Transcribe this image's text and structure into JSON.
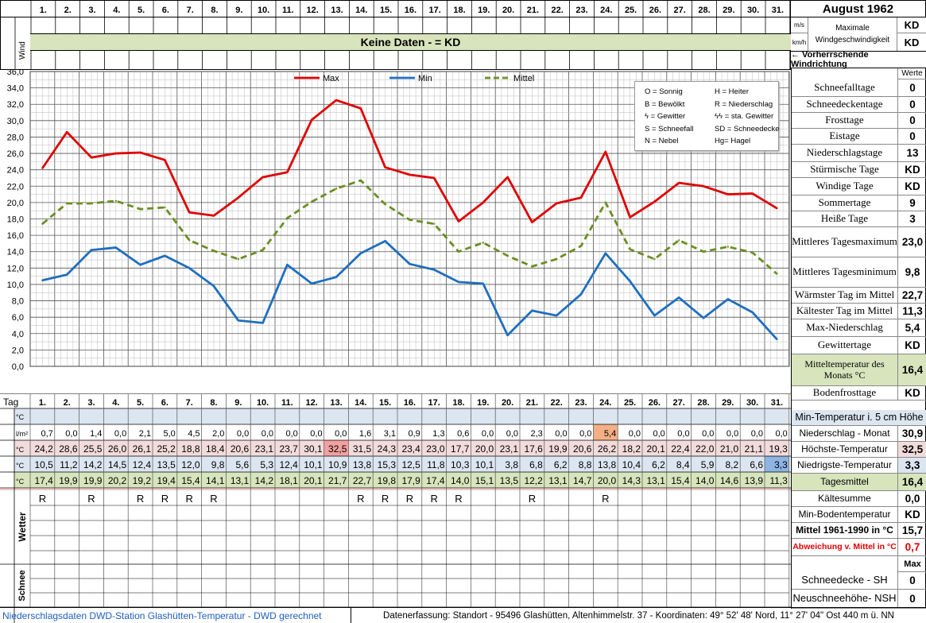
{
  "title": "August 1962",
  "days": [
    "1.",
    "2.",
    "3.",
    "4.",
    "5.",
    "6.",
    "7.",
    "8.",
    "9.",
    "10.",
    "11.",
    "12.",
    "13.",
    "14.",
    "15.",
    "16.",
    "17.",
    "18.",
    "19.",
    "20.",
    "21.",
    "22.",
    "23.",
    "24.",
    "25.",
    "26.",
    "27.",
    "28.",
    "29.",
    "30.",
    "31."
  ],
  "wind": {
    "section_label": "Wind",
    "banner": "Keine Daten -  = KD",
    "unit_ms": "m/s",
    "unit_kmh": "km/h",
    "max_label_1": "Maximale",
    "max_label_2": "Windgeschwindigkeit",
    "max_ms": "KD",
    "max_kmh": "KD",
    "prevailing": "← Vorherrschende Windrichtung"
  },
  "legend_box": {
    "items": [
      "O = Sonnig",
      "H = Heiter",
      "B = Bewölkt",
      "R = Niederschlag",
      "ϟ = Gewitter",
      "ϟϟ = sta. Gewitter",
      "S = Schneefall",
      "SD = Schneedecke",
      "N = Nebel",
      "Hg= Hagel"
    ]
  },
  "chart_data": {
    "type": "line",
    "x": [
      "1.",
      "2.",
      "3.",
      "4.",
      "5.",
      "6.",
      "7.",
      "8.",
      "9.",
      "10.",
      "11.",
      "12.",
      "13.",
      "14.",
      "15.",
      "16.",
      "17.",
      "18.",
      "19.",
      "20.",
      "21.",
      "22.",
      "23.",
      "24.",
      "25.",
      "26.",
      "27.",
      "28.",
      "29.",
      "30.",
      "31."
    ],
    "series": [
      {
        "name": "Max",
        "color": "#e00000",
        "style": "solid",
        "values": [
          24.2,
          28.6,
          25.5,
          26.0,
          26.1,
          25.2,
          18.8,
          18.4,
          20.6,
          23.1,
          23.7,
          30.1,
          32.5,
          31.5,
          24.3,
          23.4,
          23.0,
          17.7,
          20.0,
          23.1,
          17.6,
          19.9,
          20.6,
          26.2,
          18.2,
          20.1,
          22.4,
          22.0,
          21.0,
          21.1,
          19.3
        ]
      },
      {
        "name": "Min",
        "color": "#1f6fbf",
        "style": "solid",
        "values": [
          10.5,
          11.2,
          14.2,
          14.5,
          12.4,
          13.5,
          12.0,
          9.8,
          5.6,
          5.3,
          12.4,
          10.1,
          10.9,
          13.8,
          15.3,
          12.5,
          11.8,
          10.3,
          10.1,
          3.8,
          6.8,
          6.2,
          8.8,
          13.8,
          10.4,
          6.2,
          8.4,
          5.9,
          8.2,
          6.6,
          3.3
        ]
      },
      {
        "name": "Mittel",
        "color": "#6b8e23",
        "style": "dashed",
        "values": [
          17.4,
          19.9,
          19.9,
          20.2,
          19.2,
          19.4,
          15.4,
          14.1,
          13.1,
          14.2,
          18.1,
          20.1,
          21.7,
          22.7,
          19.8,
          17.9,
          17.4,
          14.0,
          15.1,
          13.5,
          12.2,
          13.1,
          14.7,
          20.0,
          14.3,
          13.1,
          15.4,
          14.0,
          14.6,
          13.9,
          11.3
        ]
      }
    ],
    "yticks": [
      "0,0",
      "2,0",
      "4,0",
      "6,0",
      "8,0",
      "10,0",
      "12,0",
      "14,0",
      "16,0",
      "18,0",
      "20,0",
      "22,0",
      "24,0",
      "26,0",
      "28,0",
      "30,0",
      "32,0",
      "34,0",
      "36,0"
    ],
    "ylim": [
      0,
      36
    ],
    "grid": true,
    "legend_position": "top"
  },
  "table": {
    "tag_label": "Tag",
    "units": [
      "°C",
      "l/m²",
      "°C",
      "°C",
      "°C"
    ],
    "niederschlag": [
      "0,7",
      "0,0",
      "1,4",
      "0,0",
      "2,1",
      "5,0",
      "4,5",
      "2,0",
      "0,0",
      "0,0",
      "0,0",
      "0,0",
      "0,0",
      "1,6",
      "3,1",
      "0,9",
      "1,3",
      "0,6",
      "0,0",
      "0,0",
      "2,3",
      "0,0",
      "0,0",
      "5,4",
      "0,0",
      "0,0",
      "0,0",
      "0,0",
      "0,0",
      "0,0",
      "0,0"
    ],
    "max": [
      "24,2",
      "28,6",
      "25,5",
      "26,0",
      "26,1",
      "25,2",
      "18,8",
      "18,4",
      "20,6",
      "23,1",
      "23,7",
      "30,1",
      "32,5",
      "31,5",
      "24,3",
      "23,4",
      "23,0",
      "17,7",
      "20,0",
      "23,1",
      "17,6",
      "19,9",
      "20,6",
      "26,2",
      "18,2",
      "20,1",
      "22,4",
      "22,0",
      "21,0",
      "21,1",
      "19,3"
    ],
    "min": [
      "10,5",
      "11,2",
      "14,2",
      "14,5",
      "12,4",
      "13,5",
      "12,0",
      "9,8",
      "5,6",
      "5,3",
      "12,4",
      "10,1",
      "10,9",
      "13,8",
      "15,3",
      "12,5",
      "11,8",
      "10,3",
      "10,1",
      "3,8",
      "6,8",
      "6,2",
      "8,8",
      "13,8",
      "10,4",
      "6,2",
      "8,4",
      "5,9",
      "8,2",
      "6,6",
      "3,3"
    ],
    "mittel": [
      "17,4",
      "19,9",
      "19,9",
      "20,2",
      "19,2",
      "19,4",
      "15,4",
      "14,1",
      "13,1",
      "14,2",
      "18,1",
      "20,1",
      "21,7",
      "22,7",
      "19,8",
      "17,9",
      "17,4",
      "14,0",
      "15,1",
      "13,5",
      "12,2",
      "13,1",
      "14,7",
      "20,0",
      "14,3",
      "13,1",
      "15,4",
      "14,0",
      "14,6",
      "13,9",
      "11,3"
    ],
    "wetter": [
      "R",
      "",
      "R",
      "",
      "R",
      "R",
      "R",
      "R",
      "",
      "",
      "",
      "",
      "",
      "R",
      "R",
      "R",
      "R",
      "R",
      "",
      "",
      "R",
      "",
      "",
      "R",
      "",
      "",
      "",
      "",
      "",
      "",
      ""
    ],
    "wetter_label": "Wetter",
    "schnee_label": "Schnee"
  },
  "right_panel": {
    "werte_header": "Werte",
    "stats": [
      {
        "label": "Schneefalltage",
        "value": "0"
      },
      {
        "label": "Schneedeckentage",
        "value": "0"
      },
      {
        "label": "Frosttage",
        "value": "0"
      },
      {
        "label": "Eistage",
        "value": "0"
      },
      {
        "label": "Niederschlagstage",
        "value": "13"
      },
      {
        "label": "Stürmische Tage",
        "value": "KD"
      },
      {
        "label": "Windige Tage",
        "value": "KD"
      },
      {
        "label": "Sommertage",
        "value": "9"
      },
      {
        "label": "Heiße Tage",
        "value": "3"
      },
      {
        "label": "Mittleres Tagesmaximum",
        "value": "23,0"
      },
      {
        "label": "Mittleres Tagesminimum",
        "value": "9,8"
      },
      {
        "label": "Wärmster Tag im Mittel",
        "value": "22,7"
      },
      {
        "label": "Kältester Tag im Mittel",
        "value": "11,3"
      },
      {
        "label": "Max-Niederschlag",
        "value": "5,4"
      },
      {
        "label": "Gewittertage",
        "value": "KD"
      },
      {
        "label": "Mitteltemperatur des Monats °C",
        "value": "16,4"
      },
      {
        "label": "Bodenfrosttage",
        "value": "KD"
      }
    ],
    "min_temp_5cm": "Min-Temperatur i. 5 cm Höhe",
    "niederschlag_monat": {
      "label": "Niederschlag - Monat",
      "value": "30,9"
    },
    "hoechste": {
      "label": "Höchste-Temperatur",
      "value": "32,5"
    },
    "niedrigste": {
      "label": "Niedrigste-Temperatur",
      "value": "3,3"
    },
    "tagesmittel": {
      "label": "Tagesmittel",
      "value": "16,4"
    },
    "kaeltesumme": {
      "label": "Kältesumme",
      "value": "0,0"
    },
    "min_boden": {
      "label": "Min-Bodentemperatur",
      "value": "KD"
    },
    "mittel_1961": {
      "label": "Mittel 1961-1990 in °C",
      "value": "15,7"
    },
    "abweichung": {
      "label": "Abweichung v. Mittel in °C",
      "value": "0,7"
    },
    "max_header": "Max",
    "schneedecke": {
      "label": "Schneedecke -   SH",
      "value": "0"
    },
    "neuschnee": {
      "label": "Neuschneehöhe- NSH",
      "value": "0"
    }
  },
  "footer": {
    "left": "Niederschlagsdaten DWD-Station Glashütten-Temperatur -  DWD gerechnet",
    "right": "Datenerfassung: Standort -  95496  Glashütten, Altenhimmelstr. 37 - Koordinaten:  49° 52' 48' Nord,   11° 27' 04\" Ost   440 m ü. NN"
  }
}
